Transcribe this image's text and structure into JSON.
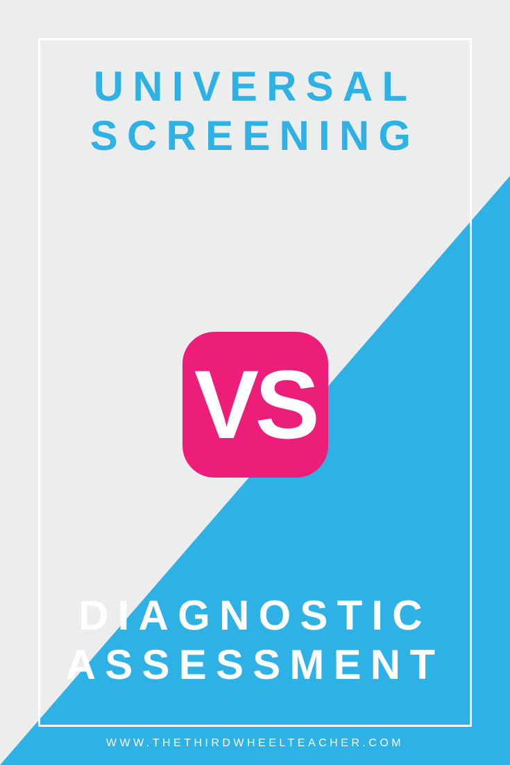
{
  "colors": {
    "bg_gray": "#eceded",
    "bg_blue": "#2eb2e6",
    "text_blue": "#2eb2e6",
    "vs_bg": "#ed1e79",
    "white": "#ffffff"
  },
  "top": {
    "line1": "UNIVERSAL",
    "line2": "SCREENING"
  },
  "vs": {
    "label": "VS"
  },
  "bottom": {
    "line1": "DIAGNOSTIC",
    "line2": "ASSESSMENT"
  },
  "url": "WWW.THETHIRDWHEELTEACHER.COM"
}
